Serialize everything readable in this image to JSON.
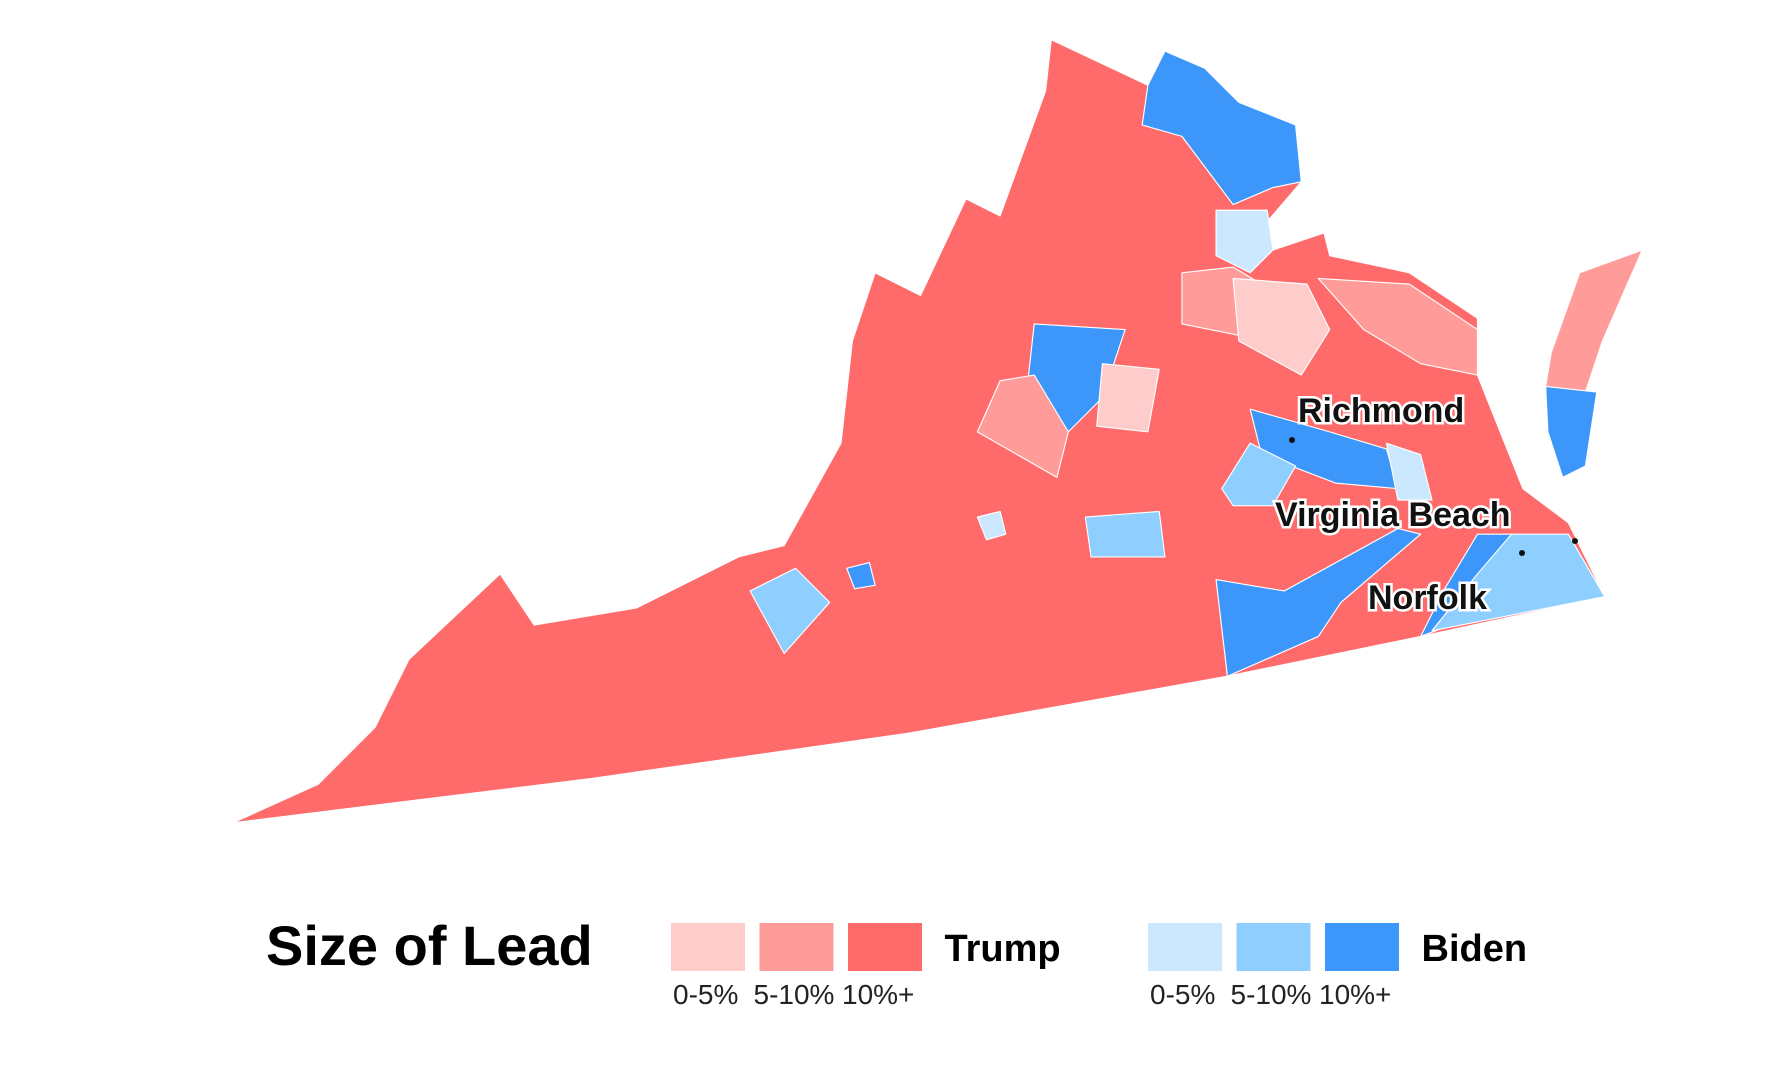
{
  "map": {
    "cities": [
      "Richmond",
      "Virginia Beach",
      "Norfolk"
    ]
  },
  "legend": {
    "title": "Size of Lead",
    "groups": [
      {
        "name": "Trump",
        "items": [
          {
            "label": "0-5%",
            "color": "#ffcccc"
          },
          {
            "label": "5-10%",
            "color": "#ff9b98"
          },
          {
            "label": "10%+",
            "color": "#ff6b6b"
          }
        ]
      },
      {
        "name": "Biden",
        "items": [
          {
            "label": "0-5%",
            "color": "#cce8ff"
          },
          {
            "label": "5-10%",
            "color": "#8fcfff"
          },
          {
            "label": "10%+",
            "color": "#3d97fb"
          }
        ]
      }
    ]
  }
}
